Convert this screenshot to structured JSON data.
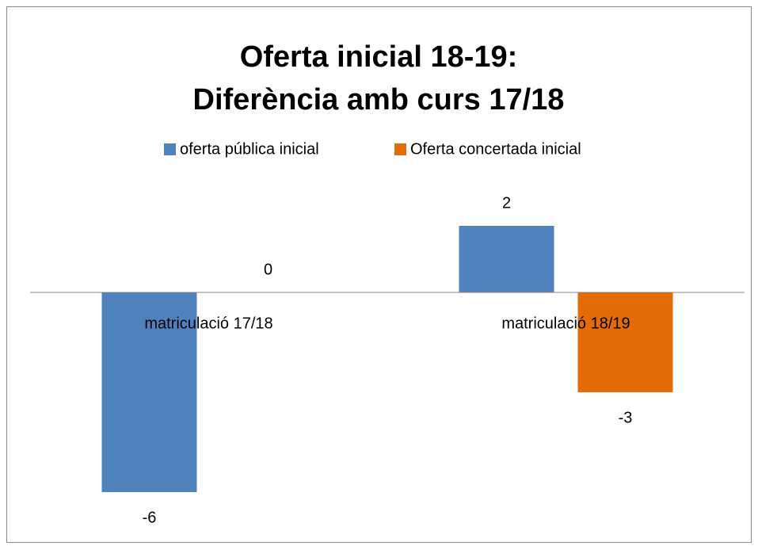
{
  "chart_data": {
    "type": "bar",
    "title": [
      "Oferta inicial 18-19:",
      "Diferència amb curs 17/18"
    ],
    "categories": [
      "matriculació 17/18",
      "matriculació 18/19"
    ],
    "series": [
      {
        "name": "oferta pública inicial",
        "color": "#4f81bd",
        "values": [
          -6,
          2
        ]
      },
      {
        "name": "Oferta concertada inicial",
        "color": "#e36c09",
        "values": [
          0,
          -3
        ]
      }
    ],
    "ylim": [
      -7,
      4
    ],
    "legend": "top"
  }
}
